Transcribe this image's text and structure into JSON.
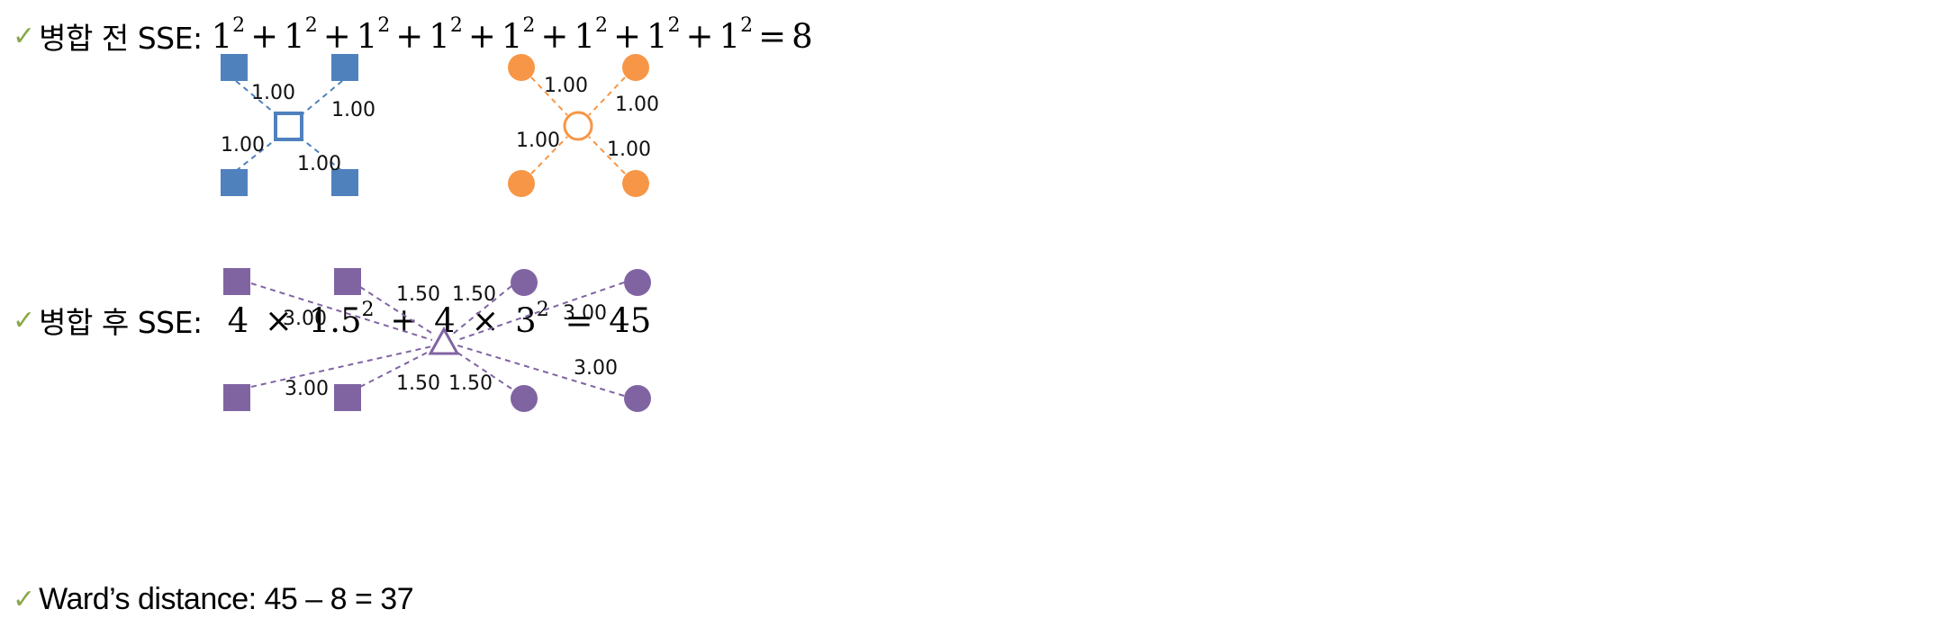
{
  "colors": {
    "check": "#8aa84a",
    "blue": "#4f81bd",
    "orange": "#f79646",
    "purple": "#8064a2"
  },
  "lines": {
    "before": {
      "check": "✓",
      "label": "병합 전 SSE:",
      "formula_terms": [
        "1",
        "1",
        "1",
        "1",
        "1",
        "1",
        "1",
        "1"
      ],
      "exponent": "2",
      "plus": "+",
      "equals": "=",
      "result": "8"
    },
    "after": {
      "check": "✓",
      "label": "병합 후 SSE:",
      "coef1": "4",
      "times": "×",
      "base1": "1.5",
      "exp1": "2",
      "plus": "+",
      "coef2": "4",
      "base2": "3",
      "exp2": "2",
      "equals": "=",
      "result": "45"
    },
    "ward": {
      "check": "✓",
      "text": "Ward’s distance: 45 – 8 = 37"
    }
  },
  "diagram_top": {
    "blue_labels": [
      "1.00",
      "1.00",
      "1.00",
      "1.00"
    ],
    "orange_labels": [
      "1.00",
      "1.00",
      "1.00",
      "1.00"
    ]
  },
  "diagram_bottom": {
    "labels": [
      "3.00",
      "1.50",
      "1.50",
      "3.00",
      "3.00",
      "1.50",
      "1.50",
      "3.00"
    ]
  }
}
